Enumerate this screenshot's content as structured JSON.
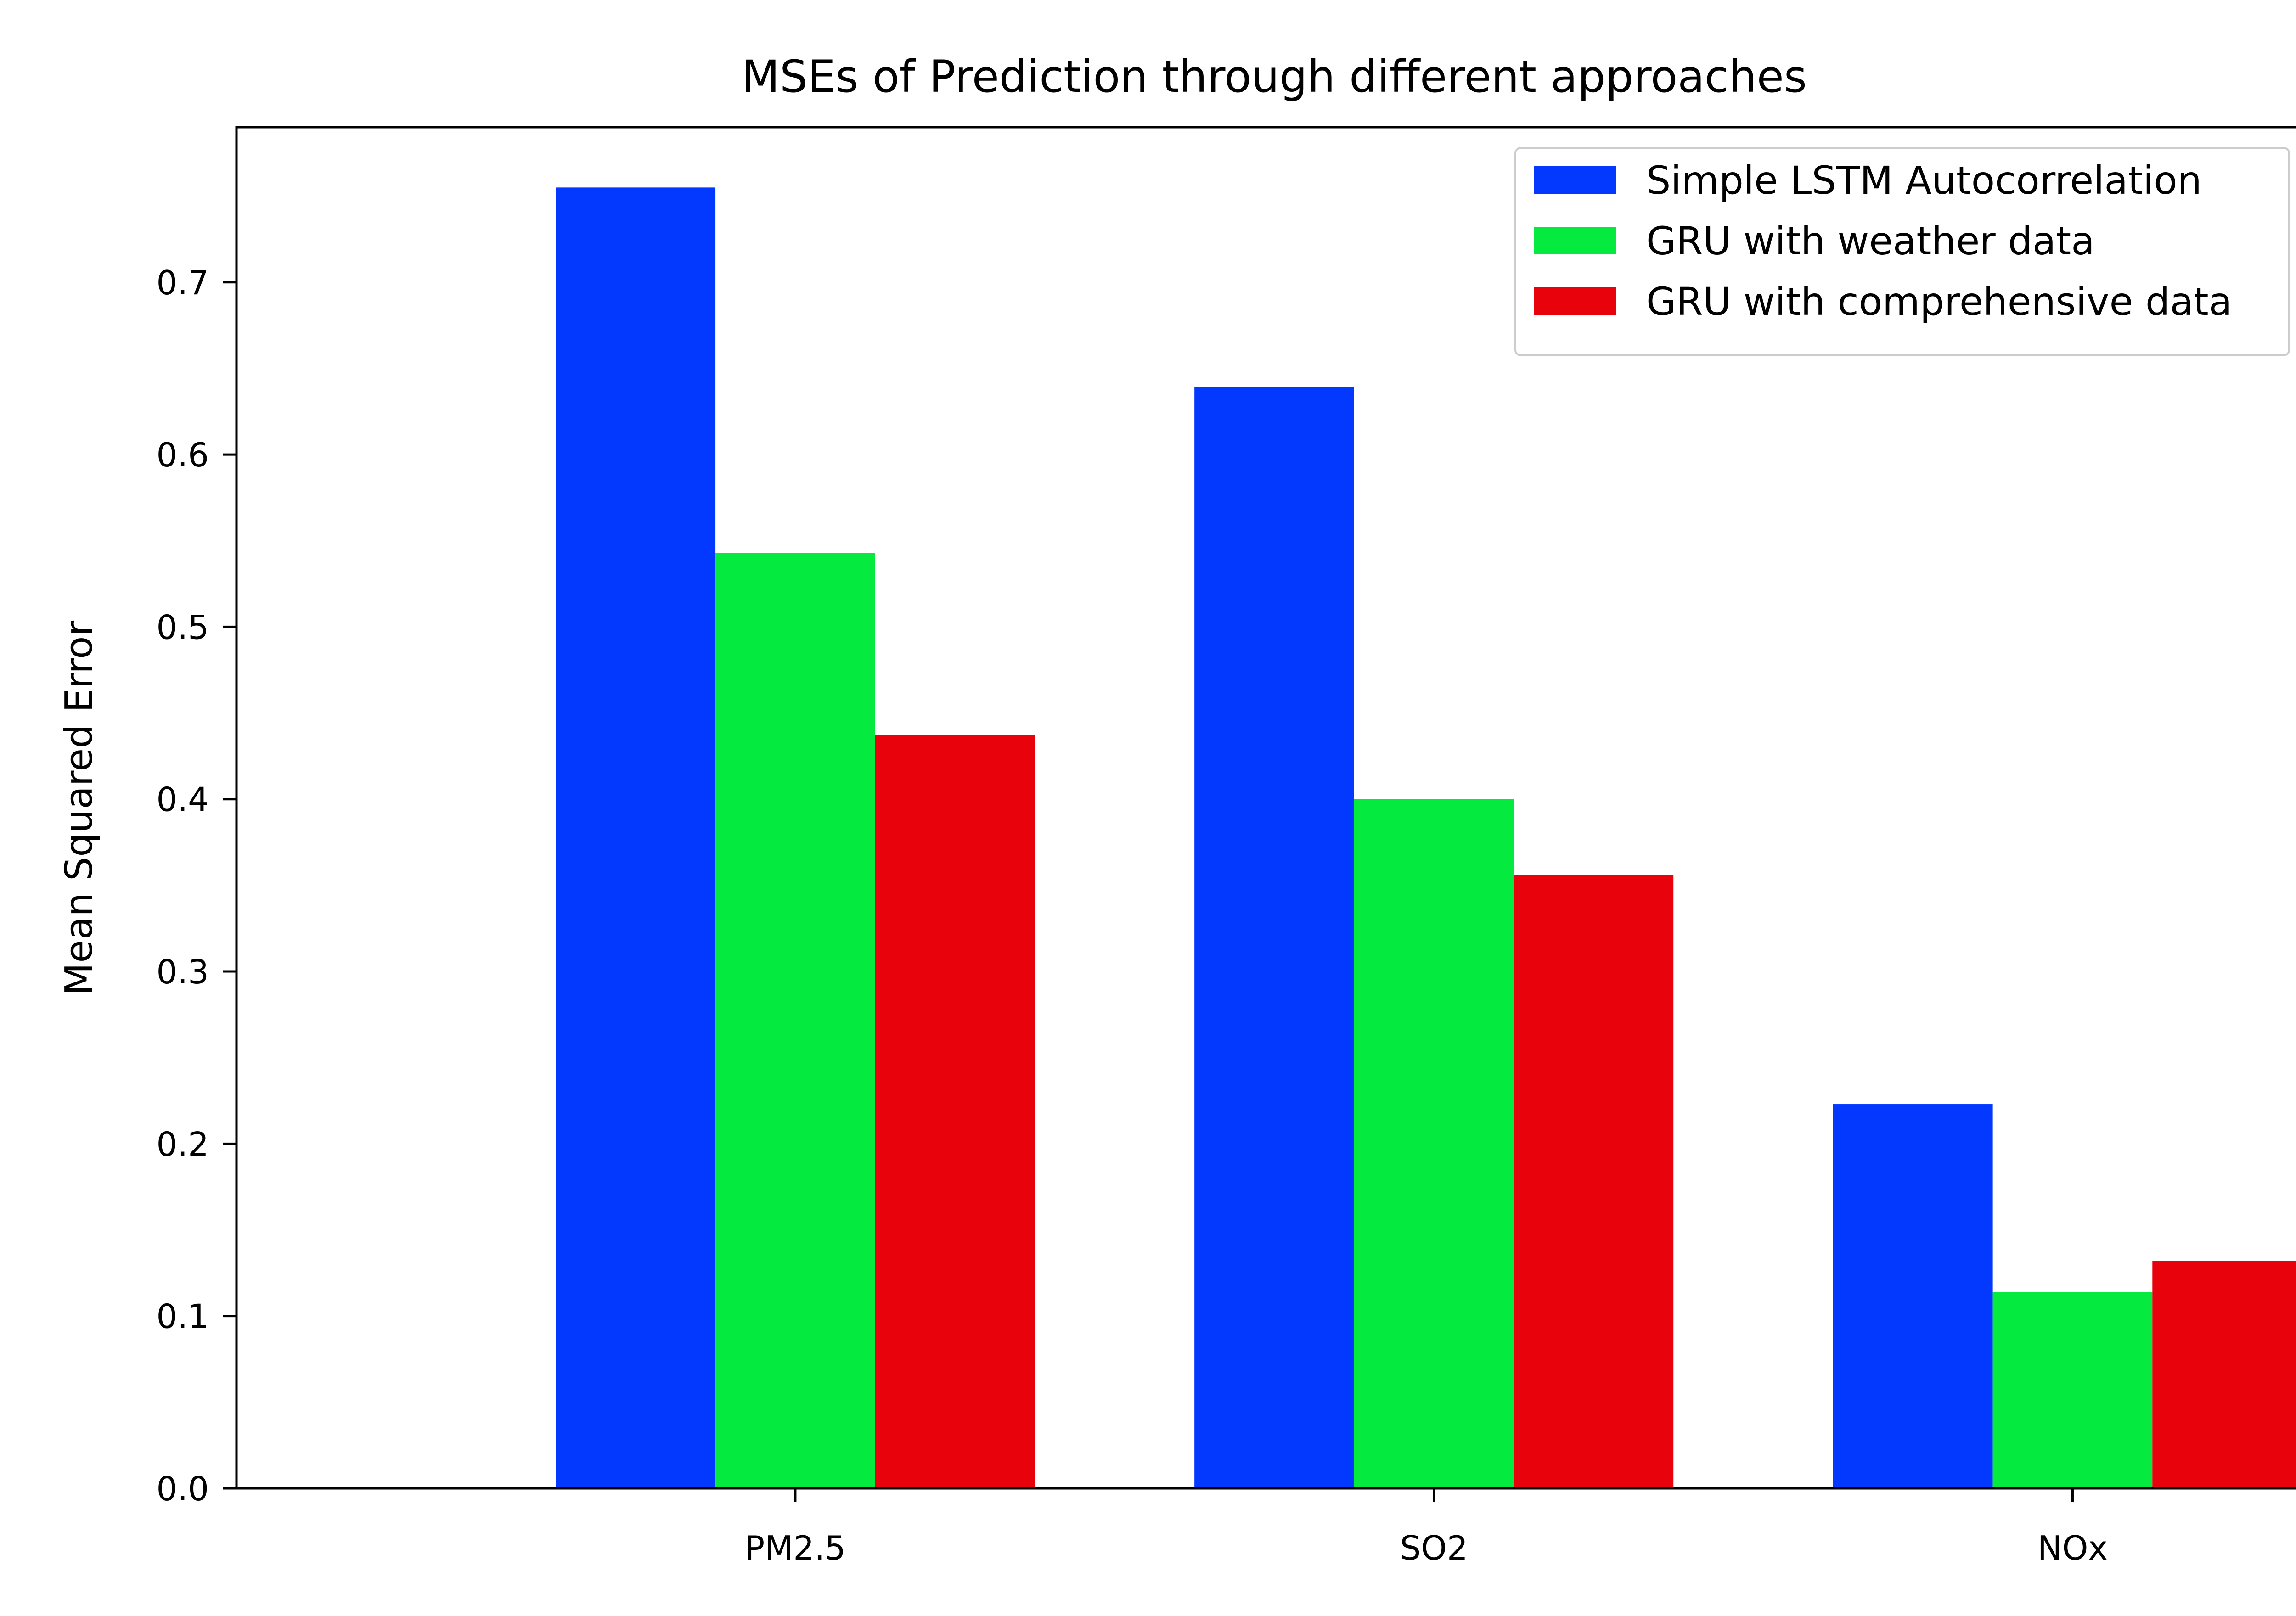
{
  "chart_data": {
    "type": "bar",
    "title": "MSEs of Prediction through different approaches",
    "xlabel": "",
    "ylabel": "Mean Squared Error",
    "categories": [
      "PM2.5",
      "SO2",
      "NOx"
    ],
    "series": [
      {
        "name": "Simple LSTM Autocorrelation",
        "color": "#0339fe",
        "values": [
          0.755,
          0.639,
          0.223
        ]
      },
      {
        "name": "GRU with weather data",
        "color": "#05ea3e",
        "values": [
          0.543,
          0.4,
          0.114
        ]
      },
      {
        "name": "GRU with comprehensive data",
        "color": "#e8020c",
        "values": [
          0.437,
          0.356,
          0.132
        ]
      }
    ],
    "ylim": [
      0.0,
      0.79
    ],
    "yticks": [
      0.0,
      0.1,
      0.2,
      0.3,
      0.4,
      0.5,
      0.6,
      0.7
    ],
    "ytick_labels": [
      "0.0",
      "0.1",
      "0.2",
      "0.3",
      "0.4",
      "0.5",
      "0.6",
      "0.7"
    ],
    "grid": false,
    "legend_position": "top-right"
  }
}
